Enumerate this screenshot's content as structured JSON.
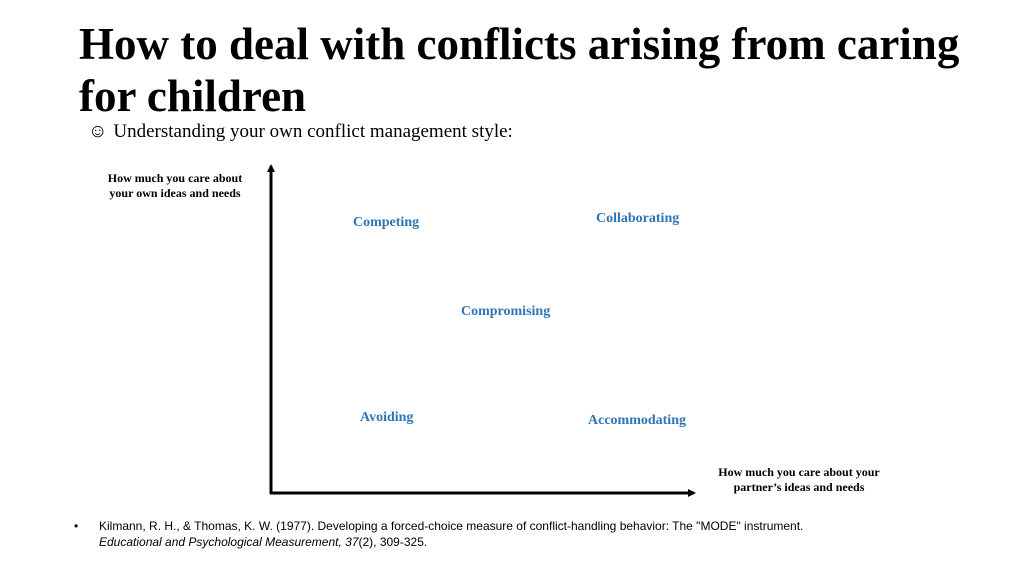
{
  "slide": {
    "title": "How to deal with conflicts arising from caring for children",
    "subtitle_icon": "smiley-icon",
    "subtitle_symbol": "☺",
    "subtitle": "Understanding your own conflict management style:"
  },
  "diagram": {
    "y_axis_label": "How much you care about your own ideas and needs",
    "x_axis_label": "How much you care about your partner’s ideas and needs",
    "styles": {
      "competing": "Competing",
      "collaborating": "Collaborating",
      "compromising": "Compromising",
      "avoiding": "Avoiding",
      "accommodating": "Accommodating"
    },
    "label_color": "#2E75B6"
  },
  "reference": {
    "bullet": "•",
    "authors": "Kilmann, R. H., & Thomas, K. W. (1977). Developing a forced-choice measure of conflict-handling behavior: The \"MODE\" instrument.",
    "journal": "Educational and Psychological Measurement, 37",
    "issue_pages": "(2), 309-325."
  }
}
